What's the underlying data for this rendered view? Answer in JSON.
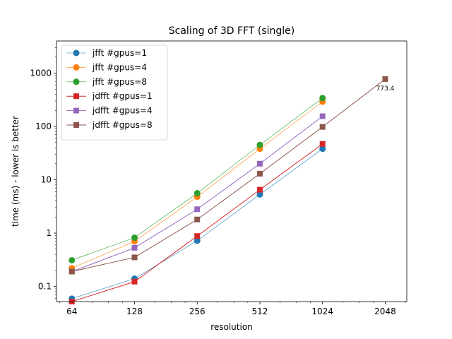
{
  "chart_data": {
    "type": "line",
    "title": "Scaling of 3D FFT (single)",
    "xlabel": "resolution",
    "ylabel": "time (ms) -  lower is better",
    "x_scale": "log2",
    "y_scale": "log10",
    "xlim": [
      54,
      2600
    ],
    "ylim": [
      0.052,
      4000
    ],
    "x_ticks": [
      64,
      128,
      256,
      512,
      1024,
      2048
    ],
    "x_tick_labels": [
      "64",
      "128",
      "256",
      "512",
      "1024",
      "2048"
    ],
    "y_ticks": [
      0.1,
      1,
      10,
      100,
      1000
    ],
    "y_tick_labels": [
      "0.1",
      "1",
      "10",
      "100",
      "1000"
    ],
    "legend_position": "top-left",
    "grid": false,
    "series": [
      {
        "name": "jfft #gpus=1",
        "color": "#1f77b4",
        "marker": "circle",
        "line_width": 0.6,
        "x": [
          64,
          128,
          256,
          512,
          1024
        ],
        "values": [
          0.059,
          0.14,
          0.72,
          5.3,
          38
        ]
      },
      {
        "name": "jfft #gpus=4",
        "color": "#ff7f0e",
        "marker": "circle",
        "line_width": 0.6,
        "x": [
          64,
          128,
          256,
          512,
          1024
        ],
        "values": [
          0.22,
          0.7,
          4.8,
          38,
          290
        ]
      },
      {
        "name": "jfft #gpus=8",
        "color": "#2ca02c",
        "marker": "circle",
        "line_width": 0.6,
        "x": [
          64,
          128,
          256,
          512,
          1024
        ],
        "values": [
          0.31,
          0.82,
          5.6,
          45,
          340
        ]
      },
      {
        "name": "jdfft #gpus=1",
        "color": "#d62728",
        "marker": "square",
        "line_width": 1.0,
        "x": [
          64,
          128,
          256,
          512,
          1024
        ],
        "values": [
          0.052,
          0.123,
          0.88,
          6.5,
          47
        ]
      },
      {
        "name": "jdfft #gpus=4",
        "color": "#9467bd",
        "marker": "square",
        "line_width": 1.0,
        "x": [
          64,
          128,
          256,
          512,
          1024
        ],
        "values": [
          0.19,
          0.53,
          2.8,
          20,
          155
        ]
      },
      {
        "name": "jdfft #gpus=8",
        "color": "#8c564b",
        "marker": "square",
        "line_width": 1.0,
        "x": [
          64,
          128,
          256,
          512,
          1024,
          2048
        ],
        "values": [
          0.19,
          0.35,
          1.8,
          13,
          98,
          773.4
        ]
      }
    ],
    "annotations": [
      {
        "text": "773.4",
        "x": 2048,
        "y": 773.4
      }
    ]
  }
}
